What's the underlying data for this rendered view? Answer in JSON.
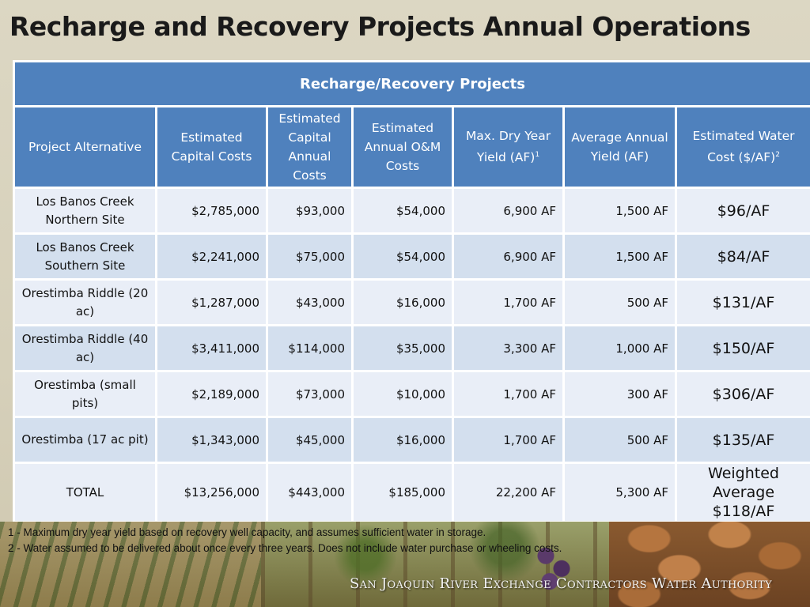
{
  "slide_title": "Recharge and Recovery Projects Annual Operations",
  "table": {
    "banner": "Recharge/Recovery Projects",
    "headers": {
      "project": "Project Alternative",
      "capital": "Estimated Capital Costs",
      "annual_capital": "Estimated Capital Annual Costs",
      "om": "Estimated Annual O&M Costs",
      "dry_yield": "Max. Dry Year Yield (AF)",
      "dry_yield_note": "1",
      "avg_yield": "Average Annual Yield (AF)",
      "water_cost": "Estimated Water Cost ($/AF)",
      "water_cost_note": "2"
    },
    "rows": [
      {
        "project": "Los Banos Creek Northern Site",
        "capital": "$2,785,000",
        "annual_capital": "$93,000",
        "om": "$54,000",
        "dry_yield": "6,900 AF",
        "avg_yield": "1,500 AF",
        "water_cost": "$96/AF"
      },
      {
        "project": "Los Banos Creek Southern Site",
        "capital": "$2,241,000",
        "annual_capital": "$75,000",
        "om": "$54,000",
        "dry_yield": "6,900 AF",
        "avg_yield": "1,500 AF",
        "water_cost": "$84/AF"
      },
      {
        "project": "Orestimba Riddle (20 ac)",
        "capital": "$1,287,000",
        "annual_capital": "$43,000",
        "om": "$16,000",
        "dry_yield": "1,700 AF",
        "avg_yield": "500 AF",
        "water_cost": "$131/AF"
      },
      {
        "project": "Orestimba Riddle (40 ac)",
        "capital": "$3,411,000",
        "annual_capital": "$114,000",
        "om": "$35,000",
        "dry_yield": "3,300 AF",
        "avg_yield": "1,000 AF",
        "water_cost": "$150/AF"
      },
      {
        "project": "Orestimba (small pits)",
        "capital": "$2,189,000",
        "annual_capital": "$73,000",
        "om": "$10,000",
        "dry_yield": "1,700 AF",
        "avg_yield": "300 AF",
        "water_cost": "$306/AF"
      },
      {
        "project": "Orestimba (17 ac pit)",
        "capital": "$1,343,000",
        "annual_capital": "$45,000",
        "om": "$16,000",
        "dry_yield": "1,700 AF",
        "avg_yield": "500 AF",
        "water_cost": "$135/AF"
      }
    ],
    "total": {
      "project": "TOTAL",
      "capital": "$13,256,000",
      "annual_capital": "$443,000",
      "om": "$185,000",
      "dry_yield": "22,200 AF",
      "avg_yield": "5,300 AF",
      "water_cost_line1": "Weighted",
      "water_cost_line2": "Average",
      "water_cost_line3": "$118/AF"
    }
  },
  "footnotes": [
    "1 - Maximum dry year yield based on recovery well capacity, and assumes sufficient water in storage.",
    "2 - Water assumed to be delivered about once every three years.  Does not include water purchase or wheeling costs."
  ],
  "organization": "San Joaquin River Exchange Contractors Water Authority"
}
